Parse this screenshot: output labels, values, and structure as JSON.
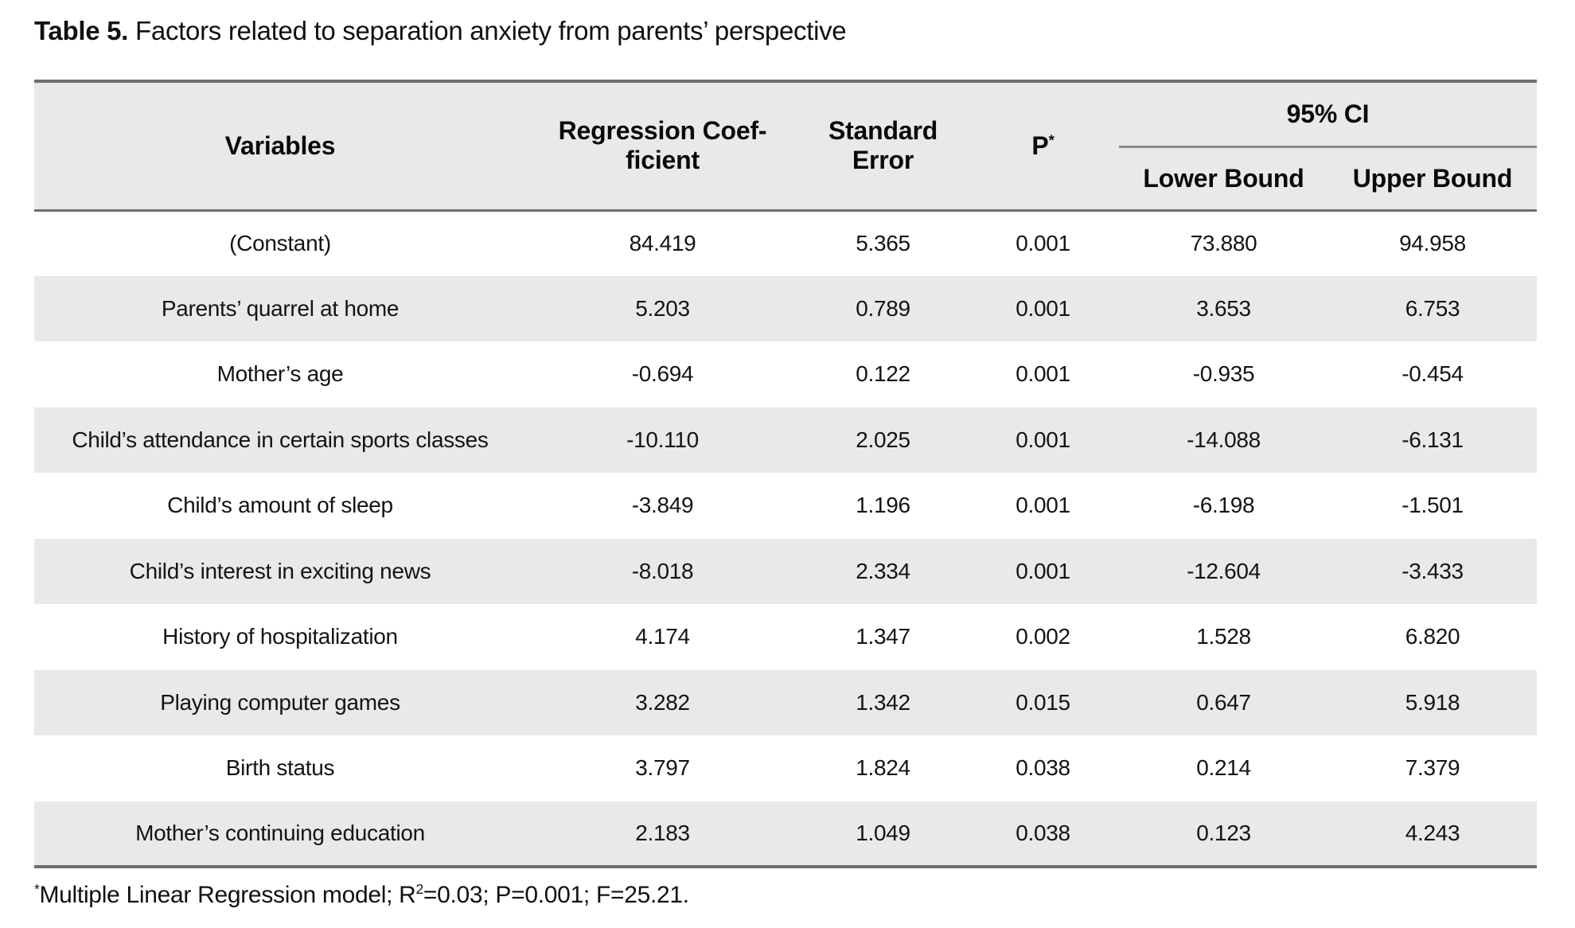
{
  "caption": {
    "label": "Table 5.",
    "text": "Factors related to separation anxiety from parents’ perspective"
  },
  "table": {
    "header": {
      "variables": "Variables",
      "regression_coefficient": [
        "Regression Coef-",
        "ficient"
      ],
      "standard_error": [
        "Standard",
        "Error"
      ],
      "p_label": "P",
      "p_sup": "*",
      "ci_label": "95% CI",
      "ci_lower": "Lower Bound",
      "ci_upper": "Upper Bound"
    },
    "rows": [
      {
        "variable": "(Constant)",
        "coef": "84.419",
        "se": "5.365",
        "p": "0.001",
        "lower": "73.880",
        "upper": "94.958"
      },
      {
        "variable": "Parents’ quarrel at home",
        "coef": "5.203",
        "se": "0.789",
        "p": "0.001",
        "lower": "3.653",
        "upper": "6.753"
      },
      {
        "variable": "Mother’s age",
        "coef": "-0.694",
        "se": "0.122",
        "p": "0.001",
        "lower": "-0.935",
        "upper": "-0.454"
      },
      {
        "variable": "Child’s attendance in certain sports classes",
        "coef": "-10.110",
        "se": "2.025",
        "p": "0.001",
        "lower": "-14.088",
        "upper": "-6.131"
      },
      {
        "variable": "Child’s amount of sleep",
        "coef": "-3.849",
        "se": "1.196",
        "p": "0.001",
        "lower": "-6.198",
        "upper": "-1.501"
      },
      {
        "variable": "Child’s interest in exciting news",
        "coef": "-8.018",
        "se": "2.334",
        "p": "0.001",
        "lower": "-12.604",
        "upper": "-3.433"
      },
      {
        "variable": "History of hospitalization",
        "coef": "4.174",
        "se": "1.347",
        "p": "0.002",
        "lower": "1.528",
        "upper": "6.820"
      },
      {
        "variable": "Playing computer games",
        "coef": "3.282",
        "se": "1.342",
        "p": "0.015",
        "lower": "0.647",
        "upper": "5.918"
      },
      {
        "variable": "Birth status",
        "coef": "3.797",
        "se": "1.824",
        "p": "0.038",
        "lower": "0.214",
        "upper": "7.379"
      },
      {
        "variable": "Mother’s continuing education",
        "coef": "2.183",
        "se": "1.049",
        "p": "0.038",
        "lower": "0.123",
        "upper": "4.243"
      }
    ]
  },
  "footnote": {
    "marker": "*",
    "part1": "Multiple Linear Regression model; R",
    "sup": "2",
    "part2": "=0.03; P=0.001; F=25.21."
  },
  "colors": {
    "border_dark": "#6e6e6e",
    "border_light": "#8a8a8a",
    "shade": "#e9e9e9",
    "text": "#141414"
  }
}
